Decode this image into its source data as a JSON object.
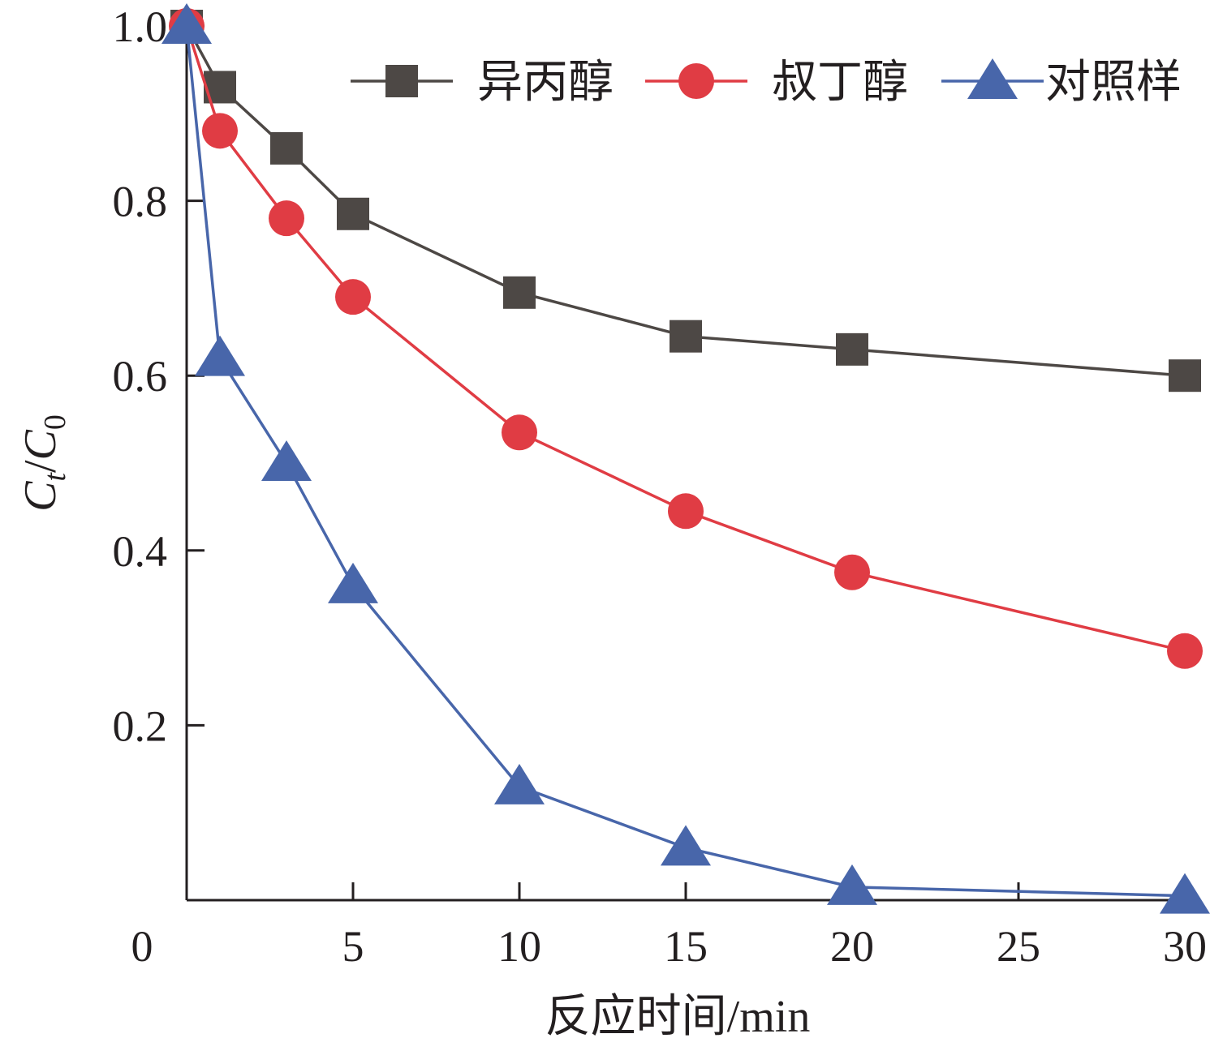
{
  "chart_data": {
    "type": "line",
    "title": "",
    "xlabel": "反应时间/min",
    "ylabel": "C_t/C_0",
    "ylabel_parts": {
      "main1": "C",
      "sub1": "t",
      "slash": "/",
      "main2": "C",
      "sub2": "0"
    },
    "xlim": [
      0,
      30
    ],
    "ylim": [
      0,
      1.0
    ],
    "x_ticks": [
      0,
      5,
      10,
      15,
      20,
      25,
      30
    ],
    "x_tick_labels": [
      "0",
      "5",
      "10",
      "15",
      "20",
      "25",
      "30"
    ],
    "y_ticks": [
      0.2,
      0.4,
      0.6,
      0.8,
      1.0
    ],
    "y_tick_labels": [
      "0.2",
      "0.4",
      "0.6",
      "0.8",
      "1.0"
    ],
    "grid": false,
    "legend_position": "top-right",
    "series": [
      {
        "name": "异丙醇",
        "color": "#4d4845",
        "marker": "square",
        "x": [
          0,
          1,
          3,
          5,
          10,
          15,
          20,
          30
        ],
        "y": [
          1.0,
          0.93,
          0.86,
          0.785,
          0.695,
          0.645,
          0.63,
          0.6
        ]
      },
      {
        "name": "叔丁醇",
        "color": "#e03c44",
        "marker": "circle",
        "x": [
          0,
          1,
          3,
          5,
          10,
          15,
          20,
          30
        ],
        "y": [
          1.0,
          0.88,
          0.78,
          0.69,
          0.535,
          0.445,
          0.375,
          0.285
        ]
      },
      {
        "name": "对照样",
        "color": "#4866aa",
        "marker": "triangle",
        "x": [
          0,
          1,
          3,
          5,
          10,
          15,
          20,
          30
        ],
        "y": [
          1.0,
          0.62,
          0.5,
          0.36,
          0.13,
          0.06,
          0.015,
          0.005
        ]
      }
    ]
  }
}
